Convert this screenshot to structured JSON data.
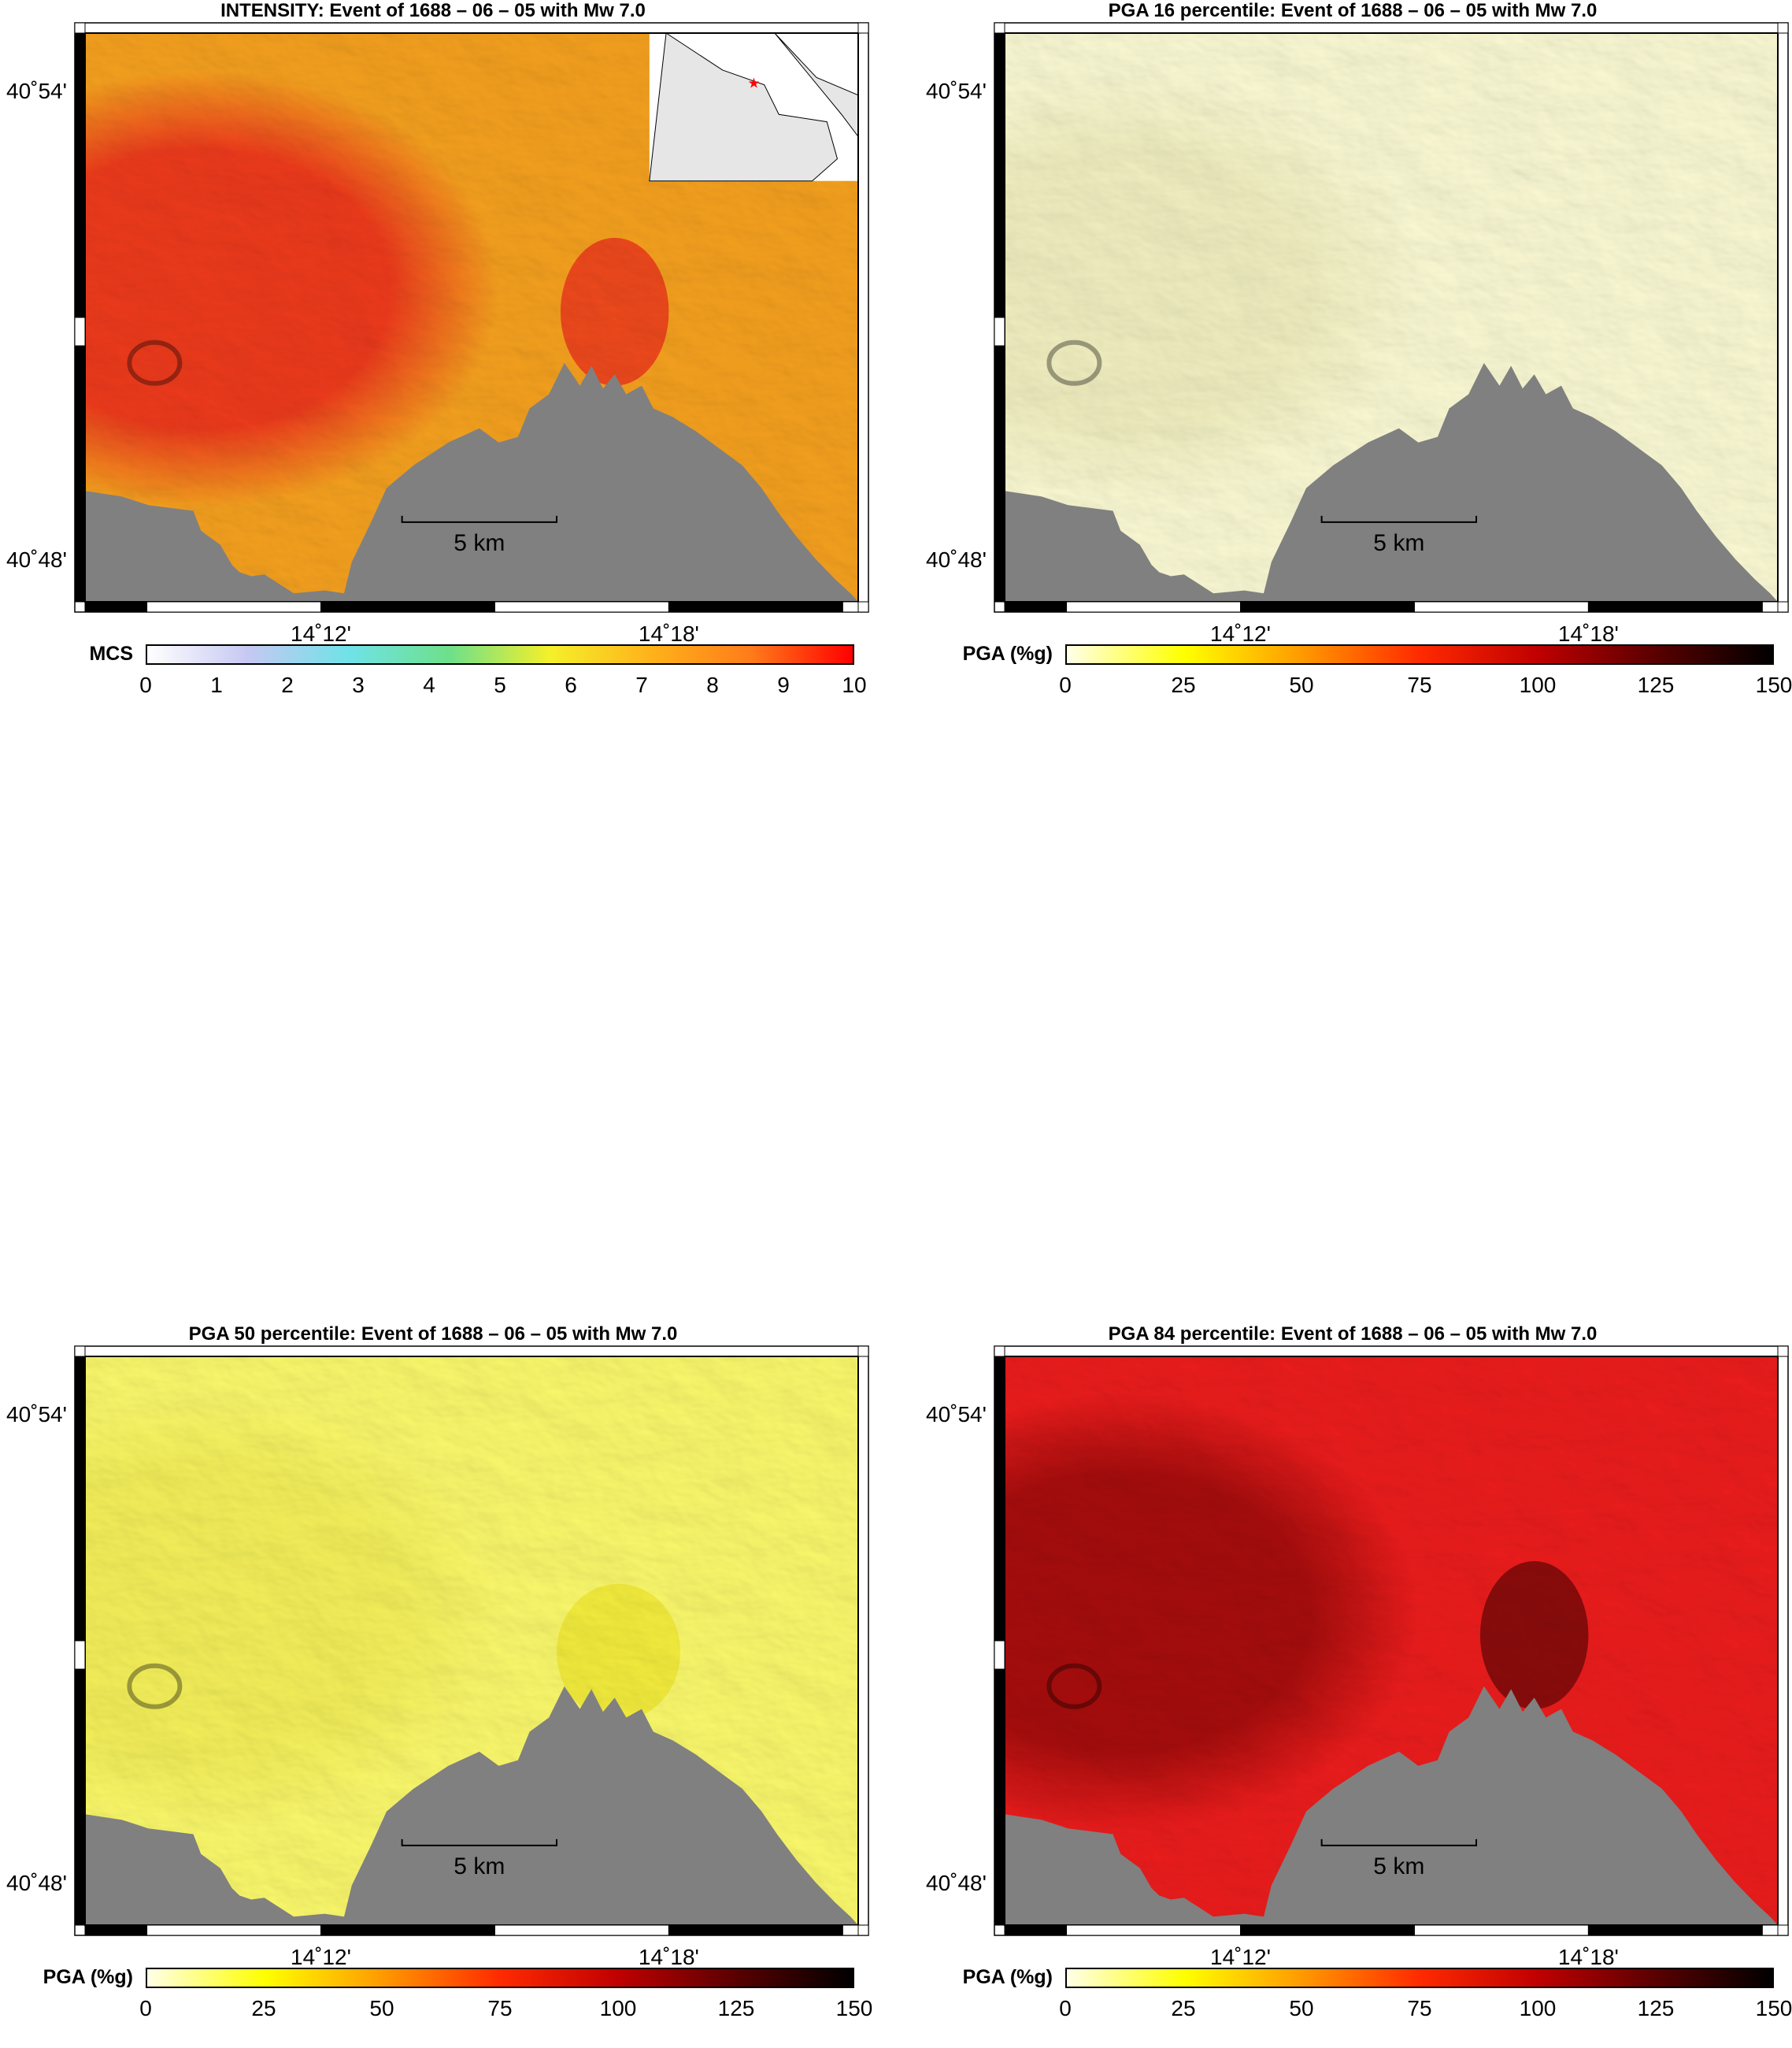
{
  "panels": [
    {
      "id": "intensity",
      "title": "INTENSITY: Event of 1688 – 06 – 05 with Mw 7.0",
      "variant": "intensity",
      "has_inset": true,
      "lat_labels": [
        "40˚54'",
        "40˚48'"
      ],
      "lon_labels": [
        "14˚12'",
        "14˚18'"
      ],
      "scale_bar_label": "5 km",
      "colorbar": {
        "label": "MCS",
        "ticks": [
          "0",
          "1",
          "2",
          "3",
          "4",
          "5",
          "6",
          "7",
          "8",
          "9",
          "10"
        ],
        "range": [
          0,
          10
        ],
        "colors": [
          "#ffffff",
          "#c6c8f2",
          "#6fe2e8",
          "#6ee08a",
          "#f5f02a",
          "#ffb21a",
          "#ff7b1a",
          "#ff0000"
        ]
      }
    },
    {
      "id": "pga16",
      "title": "PGA 16 percentile: Event of 1688 – 06 – 05 with Mw 7.0",
      "variant": "pga16",
      "has_inset": false,
      "lat_labels": [
        "40˚54'",
        "40˚48'"
      ],
      "lon_labels": [
        "14˚12'",
        "14˚18'"
      ],
      "scale_bar_label": "5 km",
      "colorbar": {
        "label": "PGA (%g)",
        "ticks": [
          "0",
          "25",
          "50",
          "75",
          "100",
          "125",
          "150"
        ],
        "range": [
          0,
          150
        ],
        "colors": [
          "#ffffe8",
          "#ffff00",
          "#ff9a00",
          "#ff2a00",
          "#c00000",
          "#5a0000",
          "#000000"
        ]
      }
    },
    {
      "id": "pga50",
      "title": "PGA 50 percentile: Event of 1688 – 06 – 05 with Mw 7.0",
      "variant": "pga50",
      "has_inset": false,
      "lat_labels": [
        "40˚54'",
        "40˚48'"
      ],
      "lon_labels": [
        "14˚12'",
        "14˚18'"
      ],
      "scale_bar_label": "5 km",
      "colorbar": {
        "label": "PGA (%g)",
        "ticks": [
          "0",
          "25",
          "50",
          "75",
          "100",
          "125",
          "150"
        ],
        "range": [
          0,
          150
        ],
        "colors": [
          "#ffffe8",
          "#ffff00",
          "#ff9a00",
          "#ff2a00",
          "#c00000",
          "#5a0000",
          "#000000"
        ]
      }
    },
    {
      "id": "pga84",
      "title": "PGA 84 percentile: Event of 1688 – 06 – 05 with Mw 7.0",
      "variant": "pga84",
      "has_inset": false,
      "lat_labels": [
        "40˚54'",
        "40˚48'"
      ],
      "lon_labels": [
        "14˚12'",
        "14˚18'"
      ],
      "scale_bar_label": "5 km",
      "colorbar": {
        "label": "PGA (%g)",
        "ticks": [
          "0",
          "25",
          "50",
          "75",
          "100",
          "125",
          "150"
        ],
        "range": [
          0,
          150
        ],
        "colors": [
          "#ffffe8",
          "#ffff00",
          "#ff9a00",
          "#ff2a00",
          "#c00000",
          "#5a0000",
          "#000000"
        ]
      }
    }
  ],
  "styles": {
    "sea_color": "#808080",
    "inset_land_color": "#e6e6e6",
    "epicenter_color": "#ff0000",
    "intensity_base": "#f7a21e",
    "intensity_high": "#f03a1c",
    "pga16_base": "#fdfcd6",
    "pga16_shade": "#a8a64a",
    "pga50_base": "#fdfb6c",
    "pga50_shade": "#b8b42a",
    "pga84_base": "#ee1c1c",
    "pga84_high": "#a80c0c"
  }
}
